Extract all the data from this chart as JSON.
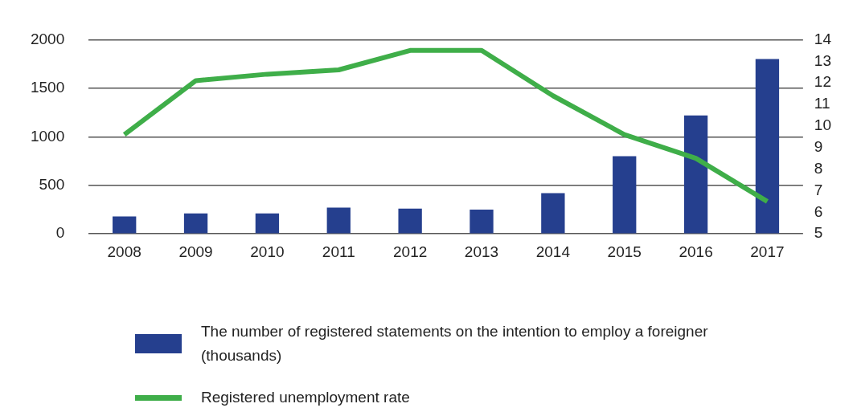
{
  "chart_data": {
    "type": "bar",
    "categories": [
      "2008",
      "2009",
      "2010",
      "2011",
      "2012",
      "2013",
      "2014",
      "2015",
      "2016",
      "2017"
    ],
    "series": [
      {
        "name": "The number of registered statements on the intention to employ a foreigner (thousands)",
        "color": "#253f8e",
        "values": [
          180,
          210,
          210,
          270,
          260,
          250,
          420,
          800,
          1220,
          1800
        ]
      },
      {
        "name": "Registered unemployment rate",
        "type": "line",
        "axis": "y2",
        "color": "#3fae49",
        "values": [
          9.6,
          12.1,
          12.4,
          12.6,
          13.5,
          13.5,
          11.4,
          9.6,
          8.5,
          6.5
        ]
      }
    ],
    "ylim": [
      0,
      2000
    ],
    "yticks": [
      0,
      500,
      1000,
      1500,
      2000
    ],
    "y2lim": [
      5,
      14
    ],
    "y2ticks": [
      5,
      6,
      7,
      8,
      9,
      10,
      11,
      12,
      13,
      14
    ],
    "grid": "y",
    "legend": "bottom",
    "marker": "none"
  }
}
